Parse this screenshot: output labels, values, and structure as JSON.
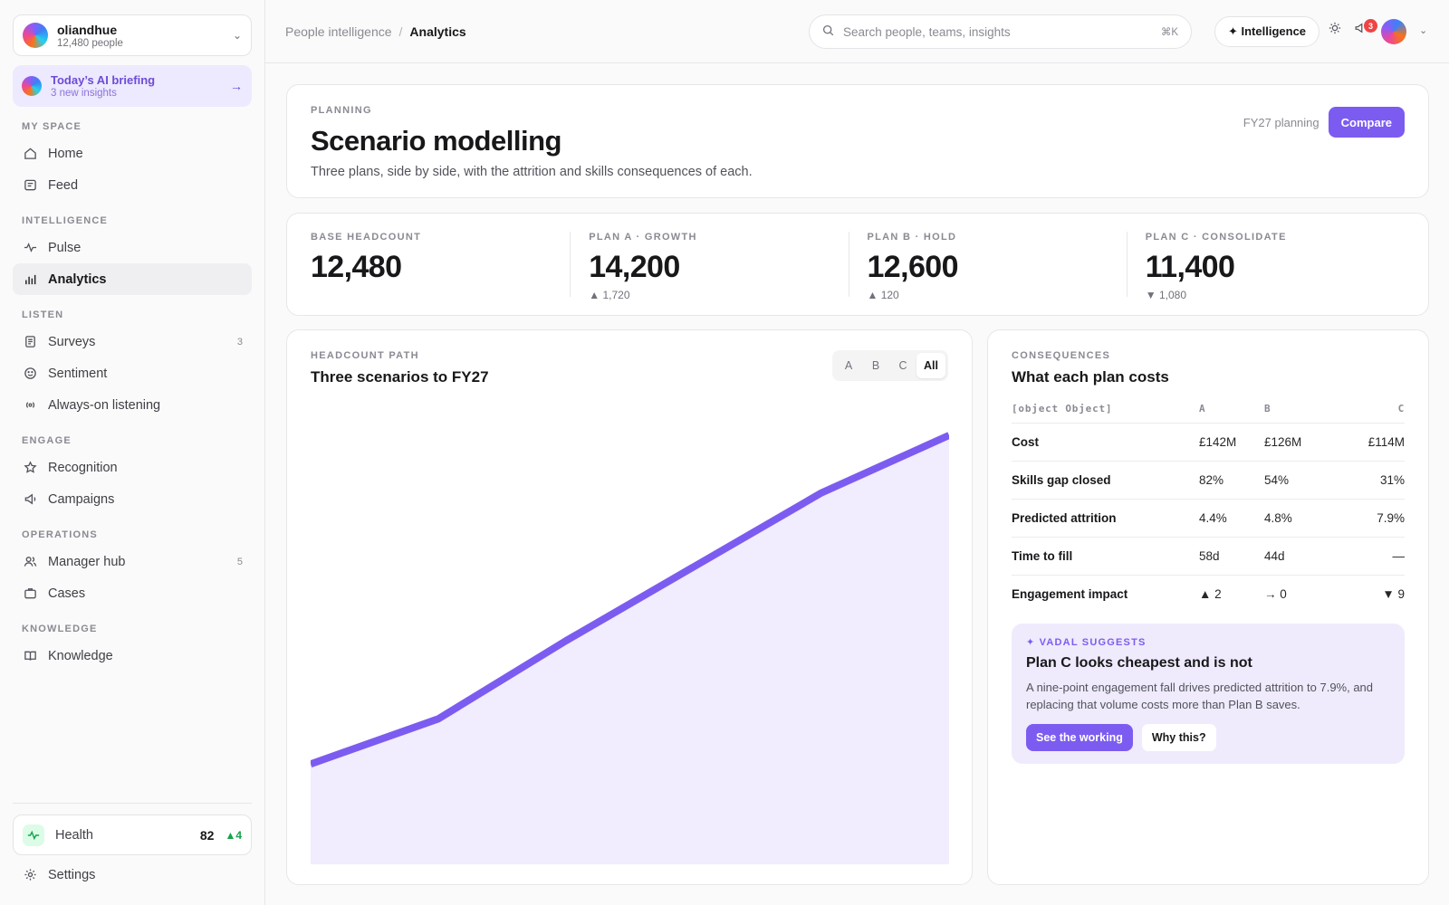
{
  "sidebar": {
    "org": {
      "name": "oliandhue",
      "count": "12,480 people"
    },
    "briefing": {
      "title": "Today’s AI briefing",
      "subtitle": "3 new insights"
    },
    "sections": {
      "my_space": "MY SPACE",
      "intelligence": "INTELLIGENCE",
      "listen": "LISTEN",
      "engage": "ENGAGE",
      "operations": "OPERATIONS",
      "knowledge": "KNOWLEDGE"
    },
    "items": {
      "home": "Home",
      "feed": "Feed",
      "pulse": "Pulse",
      "analytics": "Analytics",
      "surveys": "Surveys",
      "surveys_count": "3",
      "sentiment": "Sentiment",
      "listening": "Always-on listening",
      "recognition": "Recognition",
      "campaigns": "Campaigns",
      "manager_hub": "Manager hub",
      "manager_hub_count": "5",
      "cases": "Cases",
      "knowledge": "Knowledge"
    },
    "health": {
      "label": "Health",
      "score": "82",
      "delta": "▲4"
    },
    "settings": "Settings"
  },
  "header": {
    "breadcrumb_parent": "People intelligence",
    "breadcrumb_sep": "/",
    "breadcrumb_current": "Analytics",
    "search_placeholder": "Search people, teams, insights",
    "search_shortcut": "⌘K",
    "intelligence_label": "✦ Intelligence",
    "notification_count": "3"
  },
  "planning": {
    "eyebrow": "PLANNING",
    "title": "Scenario modelling",
    "description": "Three plans, side by side, with the attrition and skills consequences of each.",
    "fy_label": "FY27 planning",
    "compare_label": "Compare"
  },
  "stats": [
    {
      "label": "BASE HEADCOUNT",
      "value": "12,480",
      "delta": ""
    },
    {
      "label": "PLAN A · GROWTH",
      "value": "14,200",
      "delta": "▲ 1,720"
    },
    {
      "label": "PLAN B · HOLD",
      "value": "12,600",
      "delta": "▲ 120"
    },
    {
      "label": "PLAN C · CONSOLIDATE",
      "value": "11,400",
      "delta": "▼ 1,080"
    }
  ],
  "headcount_chart": {
    "eyebrow": "HEADCOUNT PATH",
    "title": "Three scenarios to FY27",
    "filters": [
      "A",
      "B",
      "C",
      "All"
    ],
    "active_filter": "All"
  },
  "chart_data": {
    "type": "area",
    "title": "Three scenarios to FY27",
    "series": [
      {
        "name": "",
        "values": [
          0.2,
          0.31,
          0.5,
          0.68,
          0.86,
          1.0
        ]
      }
    ],
    "ylim": [
      0,
      1
    ],
    "grid": false,
    "color": "#7c5cf0",
    "fill": "#f1ecfe"
  },
  "consequences": {
    "eyebrow": "CONSEQUENCES",
    "title": "What each plan costs",
    "headers": [
      "[object Object]",
      "A",
      "B",
      "C"
    ],
    "rows": [
      [
        "Cost",
        "£142M",
        "£126M",
        "£114M"
      ],
      [
        "Skills gap closed",
        "82%",
        "54%",
        "31%"
      ],
      [
        "Predicted attrition",
        "4.4%",
        "4.8%",
        "7.9%"
      ],
      [
        "Time to fill",
        "58d",
        "44d",
        "—"
      ],
      [
        "Engagement impact",
        "▲ 2",
        "→ 0",
        "▼ 9"
      ]
    ]
  },
  "suggestion": {
    "tag": "✦ VADAL SUGGESTS",
    "title": "Plan C looks cheapest and is not",
    "body": "A nine-point engagement fall drives predicted attrition to 7.9%, and replacing that volume costs more than Plan B saves.",
    "primary": "See the working",
    "secondary": "Why this?"
  }
}
